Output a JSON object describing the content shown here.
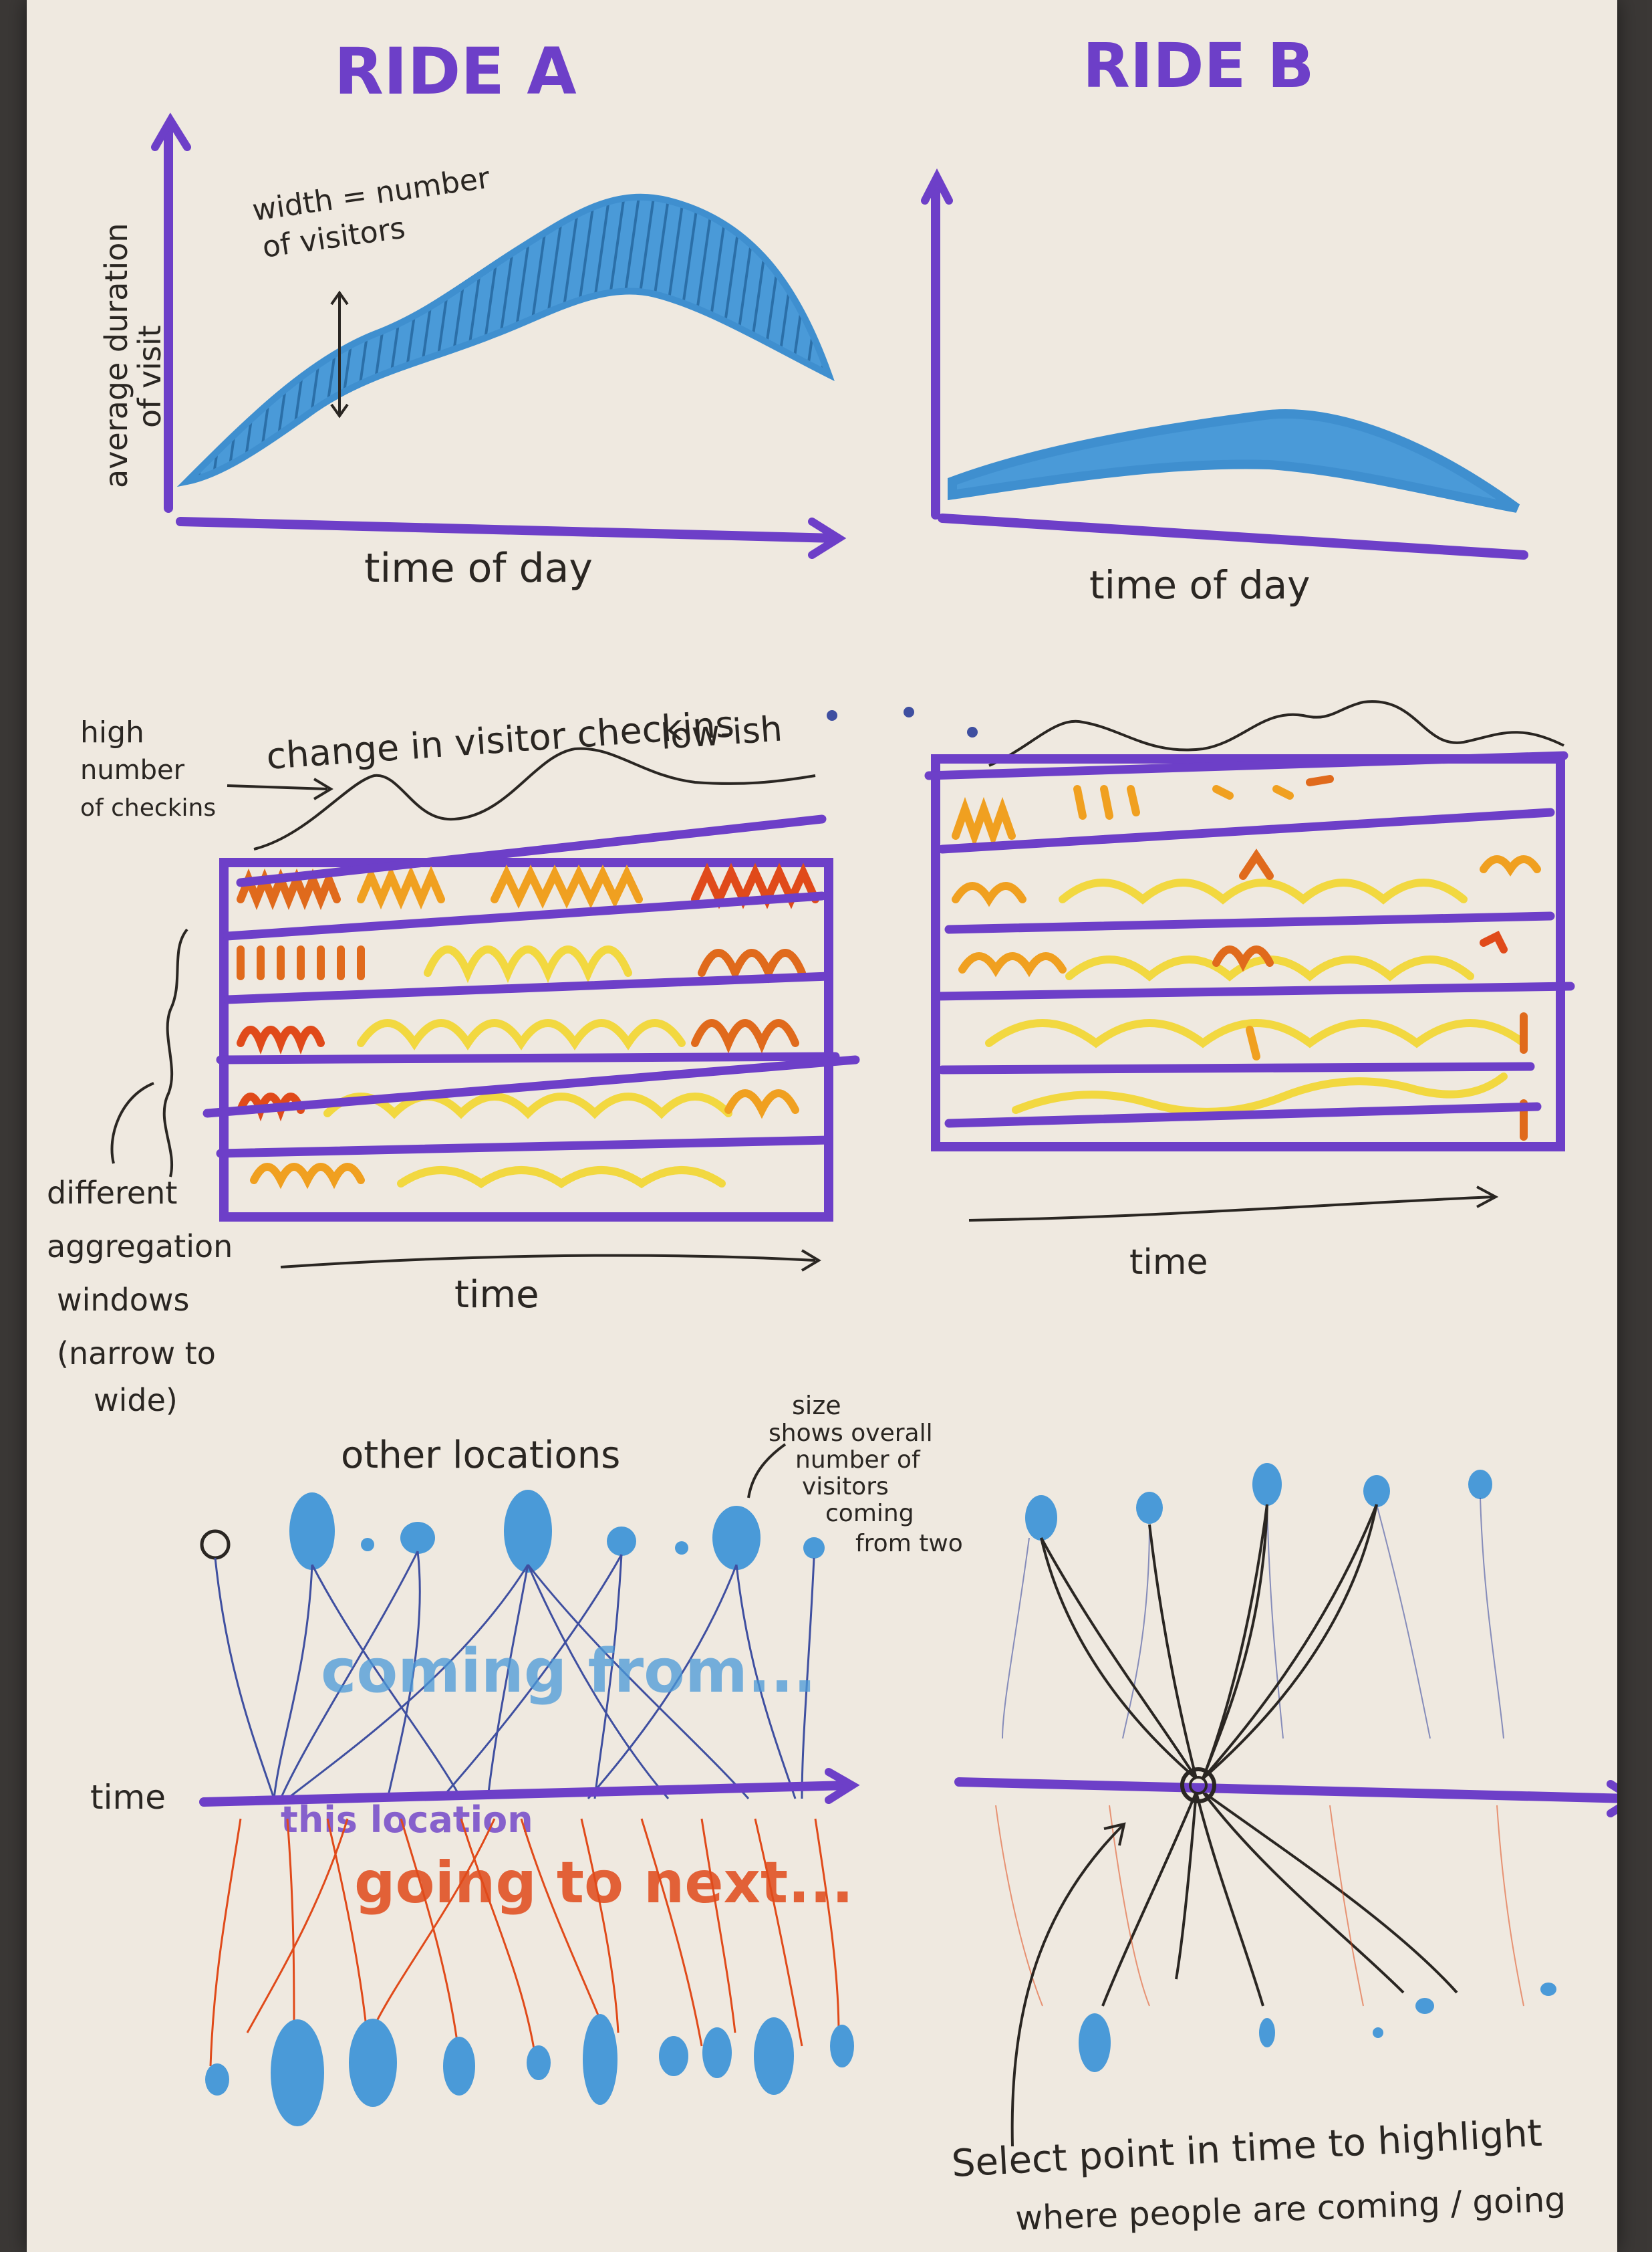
{
  "sketch": {
    "ride_a": {
      "title": "RIDE A",
      "y_label_1": "average duration",
      "y_label_2": "of visit",
      "annotation_1": "width = number",
      "annotation_2": "of visitors",
      "x_label": "time of day"
    },
    "ride_b": {
      "title": "RIDE B",
      "x_label": "time of day"
    },
    "middle": {
      "left_note_1": "high",
      "left_note_2": "number",
      "left_note_3": "of checkins",
      "change_note": "change in visitor checkins",
      "low_note": "low-ish",
      "windows_1": "different",
      "windows_2": "aggregation",
      "windows_3": "windows",
      "windows_4": "(narrow to",
      "windows_5": "wide)",
      "time_a": "time",
      "time_b": "time"
    },
    "bottom": {
      "other_locations": "other locations",
      "size_1": "size",
      "size_2": "shows overall",
      "size_3": "number of",
      "size_4": "visitors",
      "size_5": "coming",
      "size_6": "from two",
      "coming_from": "coming from...",
      "time_label": "time",
      "this_location": "this location",
      "going_to": "going to next...",
      "select_1": "Select point in time to highlight",
      "select_2": "where people are coming / going"
    }
  },
  "colors": {
    "purple": "#6d3fc8",
    "blue": "#3f8fcf",
    "orange": "#e06a1c",
    "amber": "#f0a020",
    "yellow": "#f2d840",
    "red": "#e04a1a",
    "ink": "#2a2622"
  }
}
